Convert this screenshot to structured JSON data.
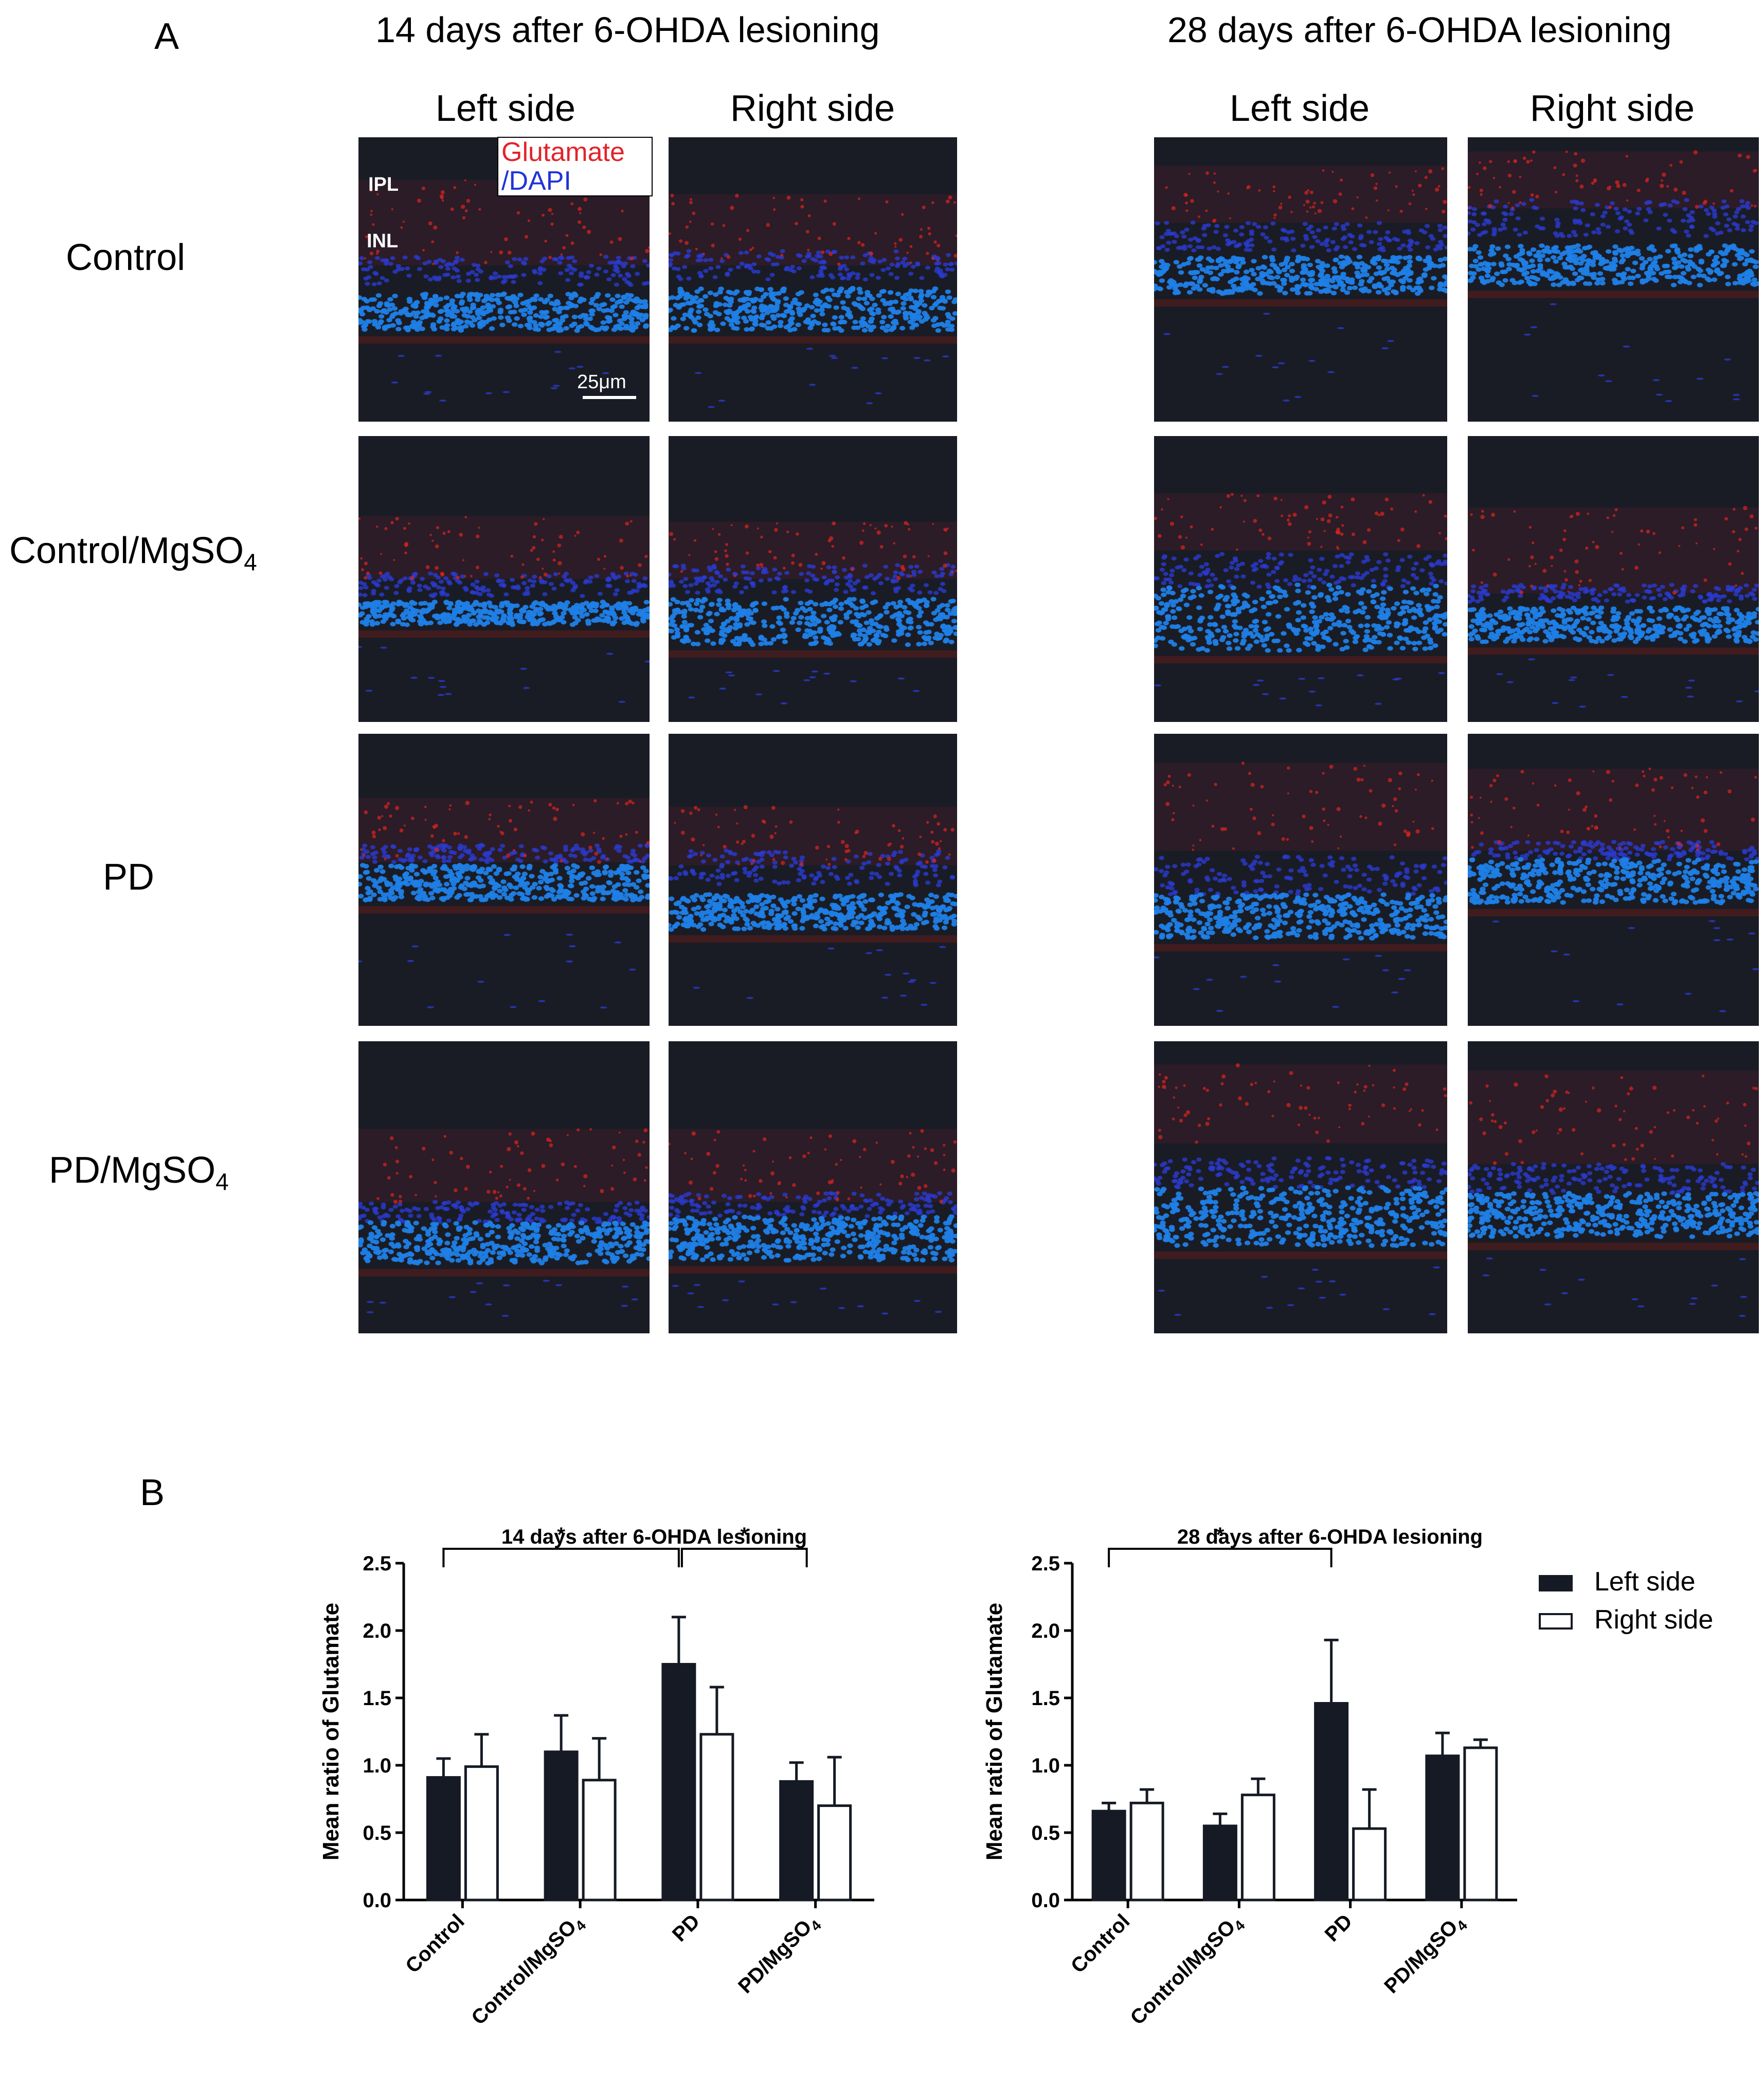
{
  "panel_a": {
    "letter": "A",
    "group_14": {
      "title": "14 days after 6-OHDA lesioning",
      "left": "Left side",
      "right": "Right side"
    },
    "group_28": {
      "title": "28 days after 6-OHDA lesioning",
      "left": "Left side",
      "right": "Right side"
    },
    "rows": [
      {
        "label": "Control",
        "sub": ""
      },
      {
        "label": "Control/MgSO",
        "sub": "4"
      },
      {
        "label": "PD",
        "sub": ""
      },
      {
        "label": "PD/MgSO",
        "sub": "4"
      }
    ],
    "legend": {
      "glutamate": "Glutamate",
      "slash": "/",
      "dapi": "DAPI"
    },
    "layers": {
      "ipl": "IPL",
      "inl": "INL"
    },
    "scale": "25μm"
  },
  "panel_b": {
    "letter": "B",
    "legend": {
      "left": "Left side",
      "right": "Right side"
    }
  },
  "colors": {
    "micro_bg": "#1a1c25",
    "dapi": "#1f7fe6",
    "dapi_dark": "#2b3bd0",
    "glutamate": "#e0241e",
    "bar_left": "#151a24",
    "bar_right": "#ffffff"
  },
  "chart_data": [
    {
      "type": "bar",
      "title": "14 days after 6-OHDA lesioning",
      "ylabel": "Mean ratio of Glutamate",
      "xlabel": "",
      "ylim": [
        0,
        2.5
      ],
      "yticks": [
        "0.0",
        "0.5",
        "1.0",
        "1.5",
        "2.0",
        "2.5"
      ],
      "categories": [
        "Control",
        "Control/MgSO4",
        "PD",
        "PD/MgSO4"
      ],
      "category_parts": [
        [
          "Control",
          ""
        ],
        [
          "Control/MgSO",
          "4"
        ],
        [
          "PD",
          ""
        ],
        [
          "PD/MgSO",
          "4"
        ]
      ],
      "series": [
        {
          "name": "Left side",
          "values": [
            0.91,
            1.1,
            1.75,
            0.88
          ],
          "errors": [
            0.14,
            0.27,
            0.35,
            0.14
          ]
        },
        {
          "name": "Right side",
          "values": [
            0.99,
            0.89,
            1.23,
            0.7
          ],
          "errors": [
            0.24,
            0.31,
            0.35,
            0.36
          ]
        }
      ],
      "significance": [
        {
          "from": 0,
          "to": 2,
          "label": "*"
        },
        {
          "from": 2,
          "to": 3,
          "label": "*"
        }
      ]
    },
    {
      "type": "bar",
      "title": "28 days after 6-OHDA lesioning",
      "ylabel": "Mean ratio of Glutamate",
      "xlabel": "",
      "ylim": [
        0,
        2.5
      ],
      "yticks": [
        "0.0",
        "0.5",
        "1.0",
        "1.5",
        "2.0",
        "2.5"
      ],
      "categories": [
        "Control",
        "Control/MgSO4",
        "PD",
        "PD/MgSO4"
      ],
      "category_parts": [
        [
          "Control",
          ""
        ],
        [
          "Control/MgSO",
          "4"
        ],
        [
          "PD",
          ""
        ],
        [
          "PD/MgSO",
          "4"
        ]
      ],
      "series": [
        {
          "name": "Left side",
          "values": [
            0.66,
            0.55,
            1.46,
            1.07
          ],
          "errors": [
            0.06,
            0.09,
            0.47,
            0.17
          ]
        },
        {
          "name": "Right side",
          "values": [
            0.72,
            0.78,
            0.53,
            1.13
          ],
          "errors": [
            0.1,
            0.12,
            0.29,
            0.06
          ]
        }
      ],
      "significance": [
        {
          "from": 0,
          "to": 2,
          "label": "*"
        }
      ]
    }
  ]
}
